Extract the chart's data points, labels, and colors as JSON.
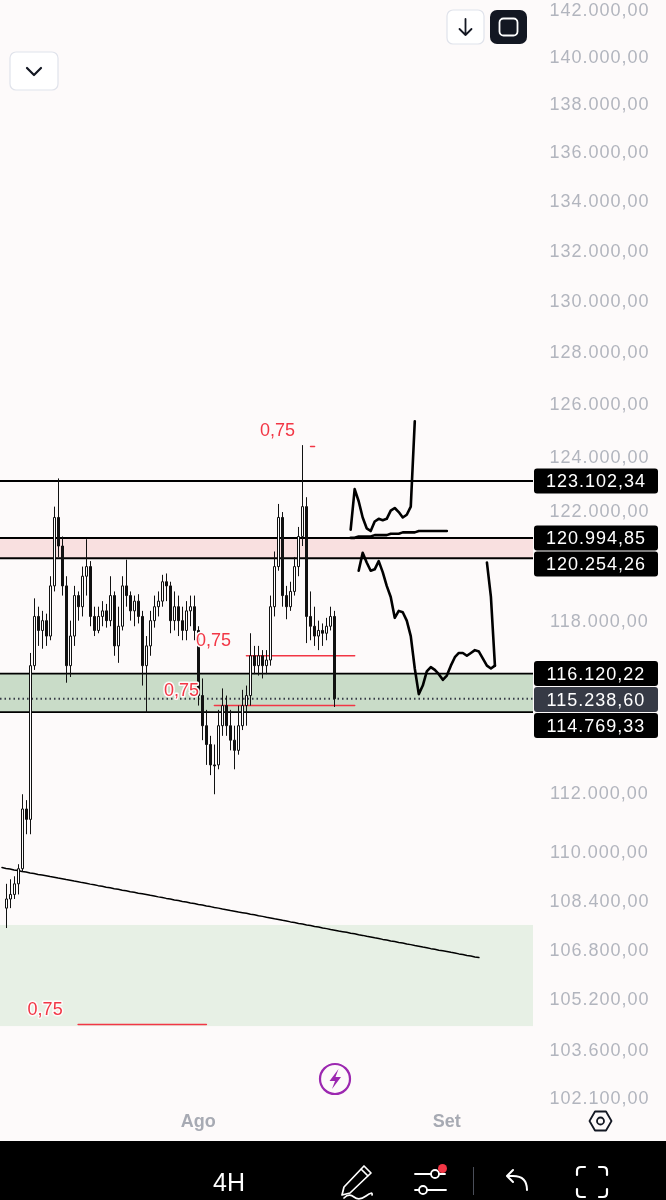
{
  "chart_data": {
    "type": "candlestick",
    "color": "#111111",
    "subtitle": "4H",
    "categories": [
      null,
      null,
      null,
      null,
      null,
      null,
      null,
      null,
      null,
      null,
      null,
      null,
      null,
      null,
      null,
      null,
      null,
      null,
      null,
      null,
      null,
      null,
      null,
      null,
      null,
      null,
      null,
      null,
      null,
      null,
      null,
      null,
      null,
      null,
      null,
      null,
      null,
      null,
      null,
      null,
      null,
      null,
      null,
      null,
      null,
      null,
      null,
      null,
      null,
      "Ago",
      null,
      null,
      null,
      null,
      null,
      null,
      null,
      null,
      null,
      null,
      null,
      null,
      null,
      null,
      null,
      null,
      null,
      null,
      null,
      null,
      null,
      null,
      null,
      null,
      null,
      null,
      null,
      null,
      null,
      null,
      null,
      null,
      null,
      null,
      null,
      null,
      null,
      null,
      null,
      null,
      null,
      null,
      null,
      null,
      null,
      null,
      null,
      null,
      null,
      null,
      null,
      null,
      null,
      null,
      null,
      null,
      null,
      null,
      null,
      null,
      null,
      "Set",
      null,
      null,
      null,
      null,
      null,
      null,
      null,
      null,
      null,
      null,
      null,
      null,
      null,
      null,
      null,
      null,
      null,
      null,
      null,
      null,
      null
    ],
    "ohlc": [
      null,
      [
        108150,
        108950,
        107500,
        108450
      ],
      [
        108450,
        109100,
        108150,
        108600
      ],
      [
        108600,
        109200,
        108450,
        108950
      ],
      [
        108950,
        109600,
        108600,
        109450
      ],
      [
        109450,
        111950,
        109350,
        111450
      ],
      [
        111450,
        111750,
        110600,
        111100
      ],
      [
        111100,
        116850,
        110600,
        116400
      ],
      [
        116400,
        118800,
        116250,
        118150
      ],
      [
        118150,
        118500,
        117100,
        117650
      ],
      [
        117650,
        118350,
        117000,
        118000
      ],
      [
        118000,
        118250,
        117100,
        117450
      ],
      [
        117450,
        119600,
        117300,
        119250
      ],
      [
        119250,
        122150,
        119050,
        121750
      ],
      [
        121750,
        123200,
        120300,
        120700
      ],
      [
        120700,
        121050,
        118900,
        119250
      ],
      [
        119250,
        119600,
        115800,
        116400
      ],
      [
        116400,
        118000,
        116000,
        117450
      ],
      [
        117450,
        119250,
        117100,
        118900
      ],
      [
        118900,
        119050,
        118000,
        118500
      ],
      [
        118500,
        119950,
        118150,
        119600
      ],
      [
        119600,
        120950,
        118900,
        119950
      ],
      [
        119950,
        120150,
        117800,
        118150
      ],
      [
        118150,
        118500,
        117450,
        117650
      ],
      [
        117650,
        118500,
        117550,
        118150
      ],
      [
        118150,
        118700,
        117800,
        118350
      ],
      [
        118350,
        118600,
        117750,
        118000
      ],
      [
        118000,
        119600,
        117800,
        118900
      ],
      [
        118900,
        119050,
        116750,
        117100
      ],
      [
        117100,
        118500,
        116500,
        117800
      ],
      [
        117800,
        119600,
        117650,
        119250
      ],
      [
        119250,
        120200,
        118500,
        118900
      ],
      [
        118900,
        119050,
        118000,
        118350
      ],
      [
        118350,
        118900,
        117800,
        118700
      ],
      [
        118700,
        118950,
        117900,
        118150
      ],
      [
        118150,
        118350,
        115700,
        116400
      ],
      [
        116400,
        117450,
        114750,
        117100
      ],
      [
        117100,
        118350,
        116750,
        118000
      ],
      [
        118000,
        118900,
        117750,
        118500
      ],
      [
        118500,
        119050,
        118150,
        118700
      ],
      [
        118700,
        119650,
        118500,
        119400
      ],
      [
        119400,
        119700,
        118700,
        119250
      ],
      [
        119250,
        119400,
        117550,
        118000
      ],
      [
        118000,
        119050,
        117650,
        118500
      ],
      [
        118500,
        118900,
        117450,
        118000
      ],
      [
        118000,
        118500,
        117300,
        117650
      ],
      [
        117650,
        118700,
        117300,
        118350
      ],
      [
        118350,
        118900,
        117800,
        118500
      ],
      [
        118500,
        118900,
        117300,
        117650
      ],
      [
        117650,
        117800,
        115000,
        115350
      ],
      [
        115350,
        115950,
        113800,
        114300
      ],
      [
        114300,
        114850,
        112950,
        113650
      ],
      [
        113650,
        113950,
        112600,
        112950
      ],
      [
        112950,
        113650,
        111950,
        112950
      ],
      [
        112950,
        114850,
        112800,
        114300
      ],
      [
        114300,
        115600,
        113950,
        115000
      ],
      [
        115000,
        115350,
        113950,
        114300
      ],
      [
        114300,
        114850,
        113450,
        113800
      ],
      [
        113800,
        114300,
        112800,
        113450
      ],
      [
        113450,
        115000,
        113300,
        114300
      ],
      [
        114300,
        115550,
        114150,
        115000
      ],
      [
        115000,
        115700,
        114300,
        115350
      ],
      [
        115350,
        117550,
        115000,
        116750
      ],
      [
        116750,
        117100,
        116100,
        116400
      ],
      [
        116400,
        117100,
        116050,
        116750
      ],
      [
        116750,
        116950,
        115950,
        116400
      ],
      [
        116400,
        116950,
        116100,
        116600
      ],
      [
        116600,
        118900,
        116400,
        118500
      ],
      [
        118500,
        120500,
        118150,
        119950
      ],
      [
        119950,
        122250,
        119800,
        121750
      ],
      [
        121750,
        121950,
        118500,
        118900
      ],
      [
        118900,
        119250,
        118050,
        118500
      ],
      [
        118500,
        119400,
        118350,
        119050
      ],
      [
        119050,
        120300,
        118900,
        119950
      ],
      [
        119950,
        121400,
        119600,
        121050
      ],
      [
        121050,
        124450,
        120700,
        122150
      ],
      [
        122150,
        122500,
        117200,
        118150
      ],
      [
        118150,
        119050,
        117300,
        117800
      ],
      [
        117800,
        118500,
        117100,
        117450
      ],
      [
        117450,
        118000,
        116950,
        117650
      ],
      [
        117650,
        117900,
        117100,
        117550
      ],
      [
        117550,
        118100,
        117300,
        117800
      ],
      [
        117800,
        118500,
        117650,
        118150
      ],
      [
        118150,
        118350,
        114950,
        115238.6
      ],
      null,
      null,
      null,
      null,
      null,
      null,
      null,
      null,
      null,
      null,
      null,
      null,
      null,
      null,
      null,
      null,
      null,
      null,
      null,
      null,
      null,
      null,
      null,
      null,
      null,
      null,
      null,
      null,
      null,
      null,
      null,
      null,
      null,
      null,
      null,
      null,
      null,
      null,
      null,
      null,
      null,
      null,
      null,
      null,
      null,
      null,
      null,
      null,
      null
    ],
    "series": [
      {
        "type": "line",
        "color": "#f23645",
        "values": [
          null,
          null,
          null,
          null,
          null,
          null,
          null,
          null,
          null,
          null,
          null,
          null,
          null,
          null,
          null,
          null,
          null,
          null,
          null,
          null,
          null,
          null,
          null,
          null,
          null,
          null,
          null,
          null,
          null,
          null,
          null,
          null,
          null,
          null,
          null,
          null,
          null,
          null,
          null,
          null,
          null,
          null,
          null,
          null,
          null,
          null,
          null,
          null,
          null,
          null,
          null,
          null,
          null,
          null,
          null,
          null,
          null,
          null,
          null,
          null,
          null,
          null,
          null,
          null,
          null,
          null,
          null,
          null,
          null,
          null,
          null,
          null,
          null,
          null,
          null,
          null,
          null,
          124400,
          124400,
          null,
          null,
          null,
          null,
          null,
          null,
          null,
          null,
          null,
          null,
          null,
          null,
          null,
          null,
          null,
          null,
          null,
          null,
          null,
          null,
          null,
          null,
          null,
          null,
          null,
          null,
          null,
          null,
          null,
          null,
          null,
          null,
          null,
          null,
          null,
          null,
          null,
          null,
          null,
          null,
          null,
          null,
          null,
          null,
          null,
          null,
          null,
          null,
          null,
          null,
          null,
          null,
          null,
          null
        ]
      },
      {
        "type": "line",
        "color": "#f23645",
        "values": [
          null,
          null,
          null,
          null,
          null,
          null,
          null,
          null,
          null,
          null,
          null,
          null,
          null,
          null,
          null,
          null,
          null,
          null,
          null,
          null,
          null,
          null,
          null,
          null,
          null,
          null,
          null,
          null,
          null,
          null,
          null,
          null,
          null,
          null,
          null,
          null,
          null,
          null,
          null,
          null,
          null,
          null,
          null,
          null,
          null,
          null,
          null,
          null,
          null,
          null,
          null,
          null,
          null,
          null,
          null,
          null,
          null,
          null,
          null,
          null,
          null,
          116750,
          116750,
          116750,
          116750,
          116750,
          116750,
          116750,
          116750,
          116750,
          116750,
          116750,
          116750,
          116750,
          116750,
          116750,
          116750,
          116750,
          116750,
          116750,
          116750,
          116750,
          116750,
          116750,
          116750,
          116750,
          116750,
          116750,
          116750,
          null,
          null,
          null,
          null,
          null,
          null,
          null,
          null,
          null,
          null,
          null,
          null,
          null,
          null,
          null,
          null,
          null,
          null,
          null,
          null,
          null,
          null,
          null,
          null,
          null,
          null,
          null,
          null,
          null,
          null,
          null,
          null,
          null,
          null,
          null,
          null,
          null,
          null,
          null,
          null,
          null,
          null,
          null,
          null
        ]
      },
      {
        "type": "line",
        "color": "#f23645",
        "values": [
          null,
          null,
          null,
          null,
          null,
          null,
          null,
          null,
          null,
          null,
          null,
          null,
          null,
          null,
          null,
          null,
          null,
          null,
          null,
          null,
          null,
          null,
          null,
          null,
          null,
          null,
          null,
          null,
          null,
          null,
          null,
          null,
          null,
          null,
          null,
          null,
          null,
          null,
          null,
          null,
          null,
          null,
          null,
          null,
          null,
          null,
          null,
          null,
          null,
          null,
          null,
          null,
          null,
          115000,
          115000,
          115000,
          115000,
          115000,
          115000,
          115000,
          115000,
          115000,
          115000,
          115000,
          115000,
          115000,
          115000,
          115000,
          115000,
          115000,
          115000,
          115000,
          115000,
          115000,
          115000,
          115000,
          115000,
          115000,
          115000,
          115000,
          115000,
          115000,
          115000,
          115000,
          115000,
          115000,
          115000,
          115000,
          115000,
          null,
          null,
          null,
          null,
          null,
          null,
          null,
          null,
          null,
          null,
          null,
          null,
          null,
          null,
          null,
          null,
          null,
          null,
          null,
          null,
          null,
          null,
          null,
          null,
          null,
          null,
          null,
          null,
          null,
          null,
          null,
          null,
          null,
          null,
          null,
          null,
          null,
          null,
          null,
          null,
          null,
          null,
          null,
          null
        ]
      },
      {
        "type": "line",
        "color": "#f23645",
        "values": [
          null,
          null,
          null,
          null,
          null,
          null,
          null,
          null,
          null,
          null,
          null,
          null,
          null,
          null,
          null,
          null,
          null,
          null,
          null,
          104400,
          104400,
          104400,
          104400,
          104400,
          104400,
          104400,
          104400,
          104400,
          104400,
          104400,
          104400,
          104400,
          104400,
          104400,
          104400,
          104400,
          104400,
          104400,
          104400,
          104400,
          104400,
          104400,
          104400,
          104400,
          104400,
          104400,
          104400,
          104400,
          104400,
          104400,
          104400,
          104400,
          null,
          null,
          null,
          null,
          null,
          null,
          null,
          null,
          null,
          null,
          null,
          null,
          null,
          null,
          null,
          null,
          null,
          null,
          null,
          null,
          null,
          null,
          null,
          null,
          null,
          null,
          null,
          null,
          null,
          null,
          null,
          null,
          null,
          null,
          null,
          null,
          null,
          null,
          null,
          null,
          null,
          null,
          null,
          null,
          null,
          null,
          null,
          null,
          null,
          null,
          null,
          null,
          null,
          null,
          null,
          null,
          null,
          null,
          null,
          null,
          null,
          null,
          null,
          null,
          null,
          null,
          null,
          null,
          null,
          null,
          null,
          null,
          null,
          null,
          null,
          null,
          null,
          null,
          null,
          null,
          null
        ]
      },
      {
        "type": "line",
        "color": "#000000",
        "values": [
          109490,
          109460,
          109440,
          109410,
          109390,
          109360,
          109340,
          109310,
          109290,
          109260,
          109240,
          109220,
          109190,
          109170,
          109140,
          109120,
          109090,
          109070,
          109040,
          109020,
          108990,
          108970,
          108940,
          108920,
          108890,
          108870,
          108840,
          108820,
          108790,
          108770,
          108740,
          108720,
          108690,
          108670,
          108640,
          108620,
          108600,
          108570,
          108550,
          108520,
          108500,
          108470,
          108450,
          108420,
          108400,
          108370,
          108350,
          108320,
          108300,
          108270,
          108250,
          108220,
          108200,
          108170,
          108150,
          108120,
          108100,
          108070,
          108050,
          108020,
          108000,
          107980,
          107950,
          107930,
          107900,
          107880,
          107850,
          107830,
          107800,
          107780,
          107750,
          107730,
          107700,
          107680,
          107650,
          107630,
          107600,
          107580,
          107550,
          107530,
          107500,
          107480,
          107450,
          107430,
          107400,
          107380,
          107360,
          107330,
          107310,
          107280,
          107260,
          107230,
          107210,
          107180,
          107160,
          107130,
          107110,
          107080,
          107060,
          107030,
          107010,
          106980,
          106960,
          106930,
          106910,
          106880,
          106860,
          106830,
          106810,
          106780,
          106760,
          106740,
          106710,
          106690,
          106660,
          106640,
          106610,
          106590,
          106560,
          106540,
          null,
          null,
          null,
          null,
          null,
          null,
          null,
          null,
          null,
          null,
          null,
          null,
          null
        ]
      },
      {
        "type": "line",
        "color": "#000000",
        "values": [
          null,
          null,
          null,
          null,
          null,
          null,
          null,
          null,
          null,
          null,
          null,
          null,
          null,
          null,
          null,
          null,
          null,
          null,
          null,
          null,
          null,
          null,
          null,
          null,
          null,
          null,
          null,
          null,
          null,
          null,
          null,
          null,
          null,
          null,
          null,
          null,
          null,
          null,
          null,
          null,
          null,
          null,
          null,
          null,
          null,
          null,
          null,
          null,
          null,
          null,
          null,
          null,
          null,
          null,
          null,
          null,
          null,
          null,
          null,
          null,
          null,
          null,
          null,
          null,
          null,
          null,
          null,
          null,
          null,
          null,
          null,
          null,
          null,
          null,
          null,
          null,
          null,
          null,
          null,
          null,
          null,
          null,
          null,
          null,
          null,
          null,
          null,
          121300,
          122800,
          122350,
          121750,
          121350,
          121250,
          121600,
          121700,
          121650,
          121700,
          122000,
          122100,
          121950,
          121750,
          121850,
          122150,
          125350,
          null,
          null,
          null,
          null,
          null,
          null,
          null,
          null,
          null,
          null,
          null,
          null,
          null,
          null,
          null,
          null,
          null,
          null,
          null,
          null,
          null,
          null,
          null,
          null,
          null,
          null,
          null,
          null,
          null
        ]
      },
      {
        "type": "line",
        "color": "#000000",
        "values": [
          null,
          null,
          null,
          null,
          null,
          null,
          null,
          null,
          null,
          null,
          null,
          null,
          null,
          null,
          null,
          null,
          null,
          null,
          null,
          null,
          null,
          null,
          null,
          null,
          null,
          null,
          null,
          null,
          null,
          null,
          null,
          null,
          null,
          null,
          null,
          null,
          null,
          null,
          null,
          null,
          null,
          null,
          null,
          null,
          null,
          null,
          null,
          null,
          null,
          null,
          null,
          null,
          null,
          null,
          null,
          null,
          null,
          null,
          null,
          null,
          null,
          null,
          null,
          null,
          null,
          null,
          null,
          null,
          null,
          null,
          null,
          null,
          null,
          null,
          null,
          null,
          null,
          null,
          null,
          null,
          null,
          null,
          null,
          null,
          null,
          null,
          null,
          121000,
          121000,
          121050,
          121050,
          121050,
          121050,
          121100,
          121100,
          121100,
          121100,
          121150,
          121150,
          121150,
          121200,
          121200,
          121200,
          121200,
          121250,
          121250,
          121250,
          121250,
          121250,
          121250,
          121250,
          121250,
          null,
          null,
          null,
          null,
          null,
          null,
          null,
          null,
          null,
          null,
          null,
          null,
          null,
          null,
          null,
          null,
          null,
          null,
          null,
          null,
          null
        ]
      },
      {
        "type": "line",
        "color": "#000000",
        "values": [
          null,
          null,
          null,
          null,
          null,
          null,
          null,
          null,
          null,
          null,
          null,
          null,
          null,
          null,
          null,
          null,
          null,
          null,
          null,
          null,
          null,
          null,
          null,
          null,
          null,
          null,
          null,
          null,
          null,
          null,
          null,
          null,
          null,
          null,
          null,
          null,
          null,
          null,
          null,
          null,
          null,
          null,
          null,
          null,
          null,
          null,
          null,
          null,
          null,
          null,
          null,
          null,
          null,
          null,
          null,
          null,
          null,
          null,
          null,
          null,
          null,
          null,
          null,
          null,
          null,
          null,
          null,
          null,
          null,
          null,
          null,
          null,
          null,
          null,
          null,
          null,
          null,
          null,
          null,
          null,
          null,
          null,
          null,
          null,
          null,
          null,
          null,
          null,
          null,
          119800,
          120450,
          120100,
          119800,
          119850,
          120150,
          119750,
          119250,
          118850,
          118100,
          118350,
          118300,
          118000,
          117450,
          116300,
          115400,
          115700,
          116200,
          116350,
          116250,
          116100,
          115900,
          116050,
          116400,
          116700,
          116850,
          116850,
          116750,
          116850,
          116950,
          116900,
          116650,
          116400,
          116300,
          116400,
          null,
          null,
          null,
          null,
          null,
          null,
          null,
          null,
          null
        ]
      },
      {
        "type": "line",
        "color": "#000000",
        "values": [
          null,
          null,
          null,
          null,
          null,
          null,
          null,
          null,
          null,
          null,
          null,
          null,
          null,
          null,
          null,
          null,
          null,
          null,
          null,
          null,
          null,
          null,
          null,
          null,
          null,
          null,
          null,
          null,
          null,
          null,
          null,
          null,
          null,
          null,
          null,
          null,
          null,
          null,
          null,
          null,
          null,
          null,
          null,
          null,
          null,
          null,
          null,
          null,
          null,
          null,
          null,
          null,
          null,
          null,
          null,
          null,
          null,
          null,
          null,
          null,
          null,
          null,
          null,
          null,
          null,
          null,
          null,
          null,
          null,
          null,
          null,
          null,
          null,
          null,
          null,
          null,
          null,
          null,
          null,
          null,
          null,
          null,
          null,
          null,
          null,
          null,
          null,
          null,
          null,
          null,
          null,
          null,
          null,
          null,
          null,
          null,
          null,
          null,
          null,
          null,
          null,
          null,
          null,
          null,
          null,
          null,
          null,
          null,
          null,
          null,
          null,
          null,
          null,
          null,
          null,
          null,
          null,
          null,
          null,
          null,
          null,
          120100,
          118850,
          116400,
          null,
          null,
          null,
          null,
          null,
          null,
          null,
          null,
          null
        ]
      }
    ],
    "ylim": [
      102100,
      142000
    ],
    "log": true,
    "yticks": [
      {
        "value": 142000,
        "label": "142.000,00"
      },
      {
        "value": 140000,
        "label": "140.000,00"
      },
      {
        "value": 138000,
        "label": "138.000,00"
      },
      {
        "value": 136000,
        "label": "136.000,00"
      },
      {
        "value": 134000,
        "label": "134.000,00"
      },
      {
        "value": 132000,
        "label": "132.000,00"
      },
      {
        "value": 130000,
        "label": "130.000,00"
      },
      {
        "value": 128000,
        "label": "128.000,00"
      },
      {
        "value": 126000,
        "label": "126.000,00"
      },
      {
        "value": 124000,
        "label": "124.000,00"
      },
      {
        "value": 122000,
        "label": "122.000,00"
      },
      {
        "value": 118000,
        "label": "118.000,00"
      },
      {
        "value": 112000,
        "label": "112.000,00"
      },
      {
        "value": 110000,
        "label": "110.000,00"
      },
      {
        "value": 108400,
        "label": "108.400,00"
      },
      {
        "value": 106800,
        "label": "106.800,00"
      },
      {
        "value": 105200,
        "label": "105.200,00"
      },
      {
        "value": 103600,
        "label": "103.600,00"
      },
      {
        "value": 102100,
        "label": "102.100,00"
      }
    ],
    "bands": [
      {
        "axis": "y",
        "from": 120254.26,
        "to": 120994.85,
        "color": "#f9e0e0"
      },
      {
        "axis": "y",
        "from": 114769.33,
        "to": 116120.22,
        "color": "#c9dcc8"
      },
      {
        "axis": "y",
        "from": 104350,
        "to": 107600,
        "color": "#e7f0e5"
      }
    ],
    "ref_lines": [
      {
        "axis": "y",
        "value": 123102.34,
        "label": "123.102,34",
        "color": "#000000"
      },
      {
        "axis": "y",
        "value": 120994.85,
        "label": "120.994,85",
        "color": "#000000"
      },
      {
        "axis": "y",
        "value": 120254.26,
        "label": "120.254,26",
        "color": "#000000"
      },
      {
        "axis": "y",
        "value": 116120.22,
        "label": "116.120,22",
        "color": "#000000"
      },
      {
        "axis": "y",
        "value": 115238.6,
        "label": "115.238,60",
        "color": "#363a45",
        "line_style": "dotted"
      },
      {
        "axis": "y",
        "value": 114769.33,
        "label": "114.769,33",
        "color": "#000000"
      }
    ],
    "annotations": [
      "0,75",
      "0,75",
      "0,75",
      "0,75"
    ]
  }
}
